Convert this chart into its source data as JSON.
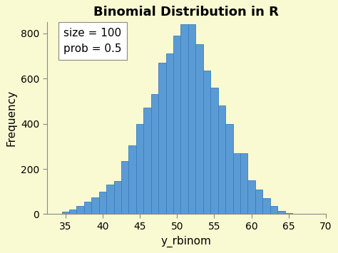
{
  "title": "Binomial Distribution in R",
  "xlabel": "y_rbinom",
  "ylabel": "Frequency",
  "background_color": "#FAFAD2",
  "bar_color": "#5B9BD5",
  "bar_edge_color": "#3A7EBD",
  "annotation_text": "size = 100\nprob = 0.5",
  "xlim": [
    32.5,
    70
  ],
  "ylim": [
    0,
    850
  ],
  "xticks": [
    35,
    40,
    45,
    50,
    55,
    60,
    65,
    70
  ],
  "yticks": [
    0,
    200,
    400,
    600,
    800
  ],
  "title_fontsize": 13,
  "label_fontsize": 11,
  "tick_fontsize": 10,
  "annotation_fontsize": 11,
  "title_fontweight": "bold",
  "bar_centers": [
    34,
    35,
    36,
    37,
    38,
    39,
    40,
    41,
    42,
    43,
    44,
    45,
    46,
    47,
    48,
    49,
    50,
    51,
    52,
    53,
    54,
    55,
    56,
    57,
    58,
    59,
    60,
    61,
    62,
    63,
    64,
    65,
    66
  ],
  "bar_heights": [
    3,
    10,
    20,
    35,
    55,
    75,
    100,
    130,
    145,
    235,
    305,
    400,
    470,
    530,
    670,
    710,
    790,
    840,
    840,
    750,
    635,
    560,
    480,
    400,
    270,
    270,
    150,
    110,
    70,
    35,
    15,
    5,
    2
  ]
}
